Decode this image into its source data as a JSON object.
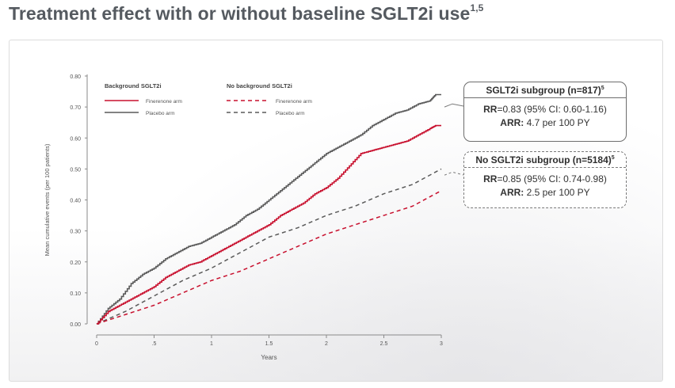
{
  "page": {
    "title": "Treatment effect with or without baseline SGLT2i use",
    "title_refs": "1,5"
  },
  "legend": {
    "group_with": "Background SGLT2i",
    "group_without": "No background SGLT2i",
    "finerenone_label": "Finerenone arm",
    "placebo_label": "Placebo arm"
  },
  "boxes": {
    "sglt2i": {
      "header": "SGLT2i subgroup (n=817)",
      "header_ref": "5",
      "rr_label": "RR",
      "rr_value": "=0.83 (95% CI: 0.60-1.16)",
      "arr_label": "ARR:",
      "arr_value": " 4.7 per 100 PY"
    },
    "no_sglt2i": {
      "header": "No SGLT2i subgroup (n=5184)",
      "header_ref": "5",
      "rr_label": "RR",
      "rr_value": "=0.85 (95% CI: 0.74-0.98)",
      "arr_label": "ARR:",
      "arr_value": " 2.5 per 100 PY"
    }
  },
  "colors": {
    "finerenone": "#c8102e",
    "placebo": "#5a5a5a",
    "axis": "#8a8a8a",
    "title": "#555a60"
  },
  "chart_data": {
    "type": "line",
    "xlabel": "Years",
    "ylabel": "Mean cumulative events (per 100 patients)",
    "xlim": [
      0,
      3
    ],
    "ylim": [
      0,
      0.8
    ],
    "x_ticks": [
      0,
      0.5,
      1,
      1.5,
      2,
      2.5,
      3
    ],
    "x_tick_labels": [
      "0",
      ".5",
      "1",
      "1.5",
      "2",
      "2.5",
      "3"
    ],
    "y_ticks": [
      0,
      0.1,
      0.2,
      0.3,
      0.4,
      0.5,
      0.6,
      0.7,
      0.8
    ],
    "y_tick_labels": [
      "0.00",
      "0.10",
      "0.20",
      "0.30",
      "0.40",
      "0.50",
      "0.60",
      "0.70",
      "0.80"
    ],
    "grid": false,
    "legend_position": "top-left",
    "series": [
      {
        "name": "Background SGLT2i — Placebo arm",
        "style": "solid",
        "color_key": "placebo",
        "x": [
          0,
          0.1,
          0.2,
          0.3,
          0.4,
          0.5,
          0.6,
          0.7,
          0.8,
          0.9,
          1.0,
          1.1,
          1.2,
          1.3,
          1.4,
          1.5,
          1.6,
          1.7,
          1.8,
          1.9,
          2.0,
          2.1,
          2.2,
          2.3,
          2.4,
          2.5,
          2.6,
          2.7,
          2.8,
          2.9,
          2.95,
          3.0
        ],
        "y": [
          0,
          0.05,
          0.08,
          0.13,
          0.16,
          0.18,
          0.21,
          0.23,
          0.25,
          0.26,
          0.28,
          0.3,
          0.32,
          0.35,
          0.37,
          0.4,
          0.43,
          0.46,
          0.49,
          0.52,
          0.55,
          0.57,
          0.59,
          0.61,
          0.64,
          0.66,
          0.68,
          0.69,
          0.71,
          0.72,
          0.74,
          0.74
        ]
      },
      {
        "name": "Background SGLT2i — Finerenone arm",
        "style": "solid",
        "color_key": "finerenone",
        "x": [
          0,
          0.1,
          0.2,
          0.3,
          0.4,
          0.5,
          0.6,
          0.7,
          0.8,
          0.9,
          1.0,
          1.1,
          1.2,
          1.3,
          1.4,
          1.5,
          1.6,
          1.7,
          1.8,
          1.9,
          2.0,
          2.1,
          2.2,
          2.3,
          2.4,
          2.5,
          2.6,
          2.7,
          2.8,
          2.9,
          2.95,
          3.0
        ],
        "y": [
          0,
          0.04,
          0.06,
          0.08,
          0.1,
          0.12,
          0.15,
          0.17,
          0.19,
          0.2,
          0.22,
          0.24,
          0.26,
          0.28,
          0.3,
          0.32,
          0.35,
          0.37,
          0.39,
          0.42,
          0.44,
          0.47,
          0.51,
          0.55,
          0.56,
          0.57,
          0.58,
          0.59,
          0.61,
          0.63,
          0.64,
          0.64
        ]
      },
      {
        "name": "No background SGLT2i — Placebo arm",
        "style": "dashed",
        "color_key": "placebo",
        "x": [
          0,
          0.25,
          0.5,
          0.75,
          1.0,
          1.25,
          1.5,
          1.75,
          2.0,
          2.25,
          2.5,
          2.75,
          3.0
        ],
        "y": [
          0,
          0.04,
          0.09,
          0.14,
          0.18,
          0.23,
          0.28,
          0.31,
          0.35,
          0.38,
          0.42,
          0.45,
          0.5
        ]
      },
      {
        "name": "No background SGLT2i — Finerenone arm",
        "style": "dashed",
        "color_key": "finerenone",
        "x": [
          0,
          0.25,
          0.5,
          0.75,
          1.0,
          1.25,
          1.5,
          1.75,
          2.0,
          2.25,
          2.5,
          2.75,
          3.0
        ],
        "y": [
          0,
          0.03,
          0.06,
          0.1,
          0.14,
          0.17,
          0.21,
          0.25,
          0.29,
          0.32,
          0.35,
          0.38,
          0.43
        ]
      }
    ]
  }
}
